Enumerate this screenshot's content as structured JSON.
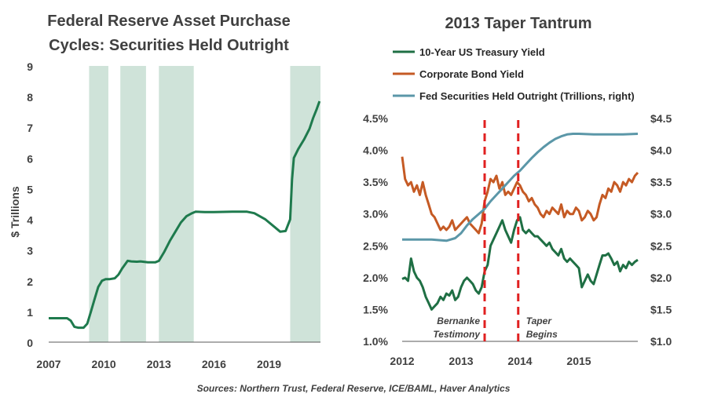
{
  "colors": {
    "shade": "#cfe3d9",
    "fed_left": "#1e7a4d",
    "treasury": "#1f6f44",
    "corporate": "#c55a24",
    "fed_right": "#5b97a8",
    "taper_line": "#e02020",
    "axis": "#595959"
  },
  "source": "Sources: Northern Trust, Federal Reserve, ICE/BAML, Haver Analytics",
  "chart_data": [
    {
      "type": "line",
      "title": "Federal Reserve Asset Purchase Cycles: Securities Held Outright",
      "title_lines": [
        "Federal Reserve Asset Purchase",
        "Cycles: Securities Held Outright"
      ],
      "xlabel": "",
      "ylabel": "$ Trillions",
      "xlim": [
        2007,
        2021.8
      ],
      "ylim": [
        0,
        9
      ],
      "x_ticks": [
        "2007",
        "2010",
        "2013",
        "2016",
        "2019"
      ],
      "x_tick_values": [
        2007,
        2010,
        2013,
        2016,
        2019
      ],
      "y_ticks": [
        "0",
        "1",
        "2",
        "3",
        "4",
        "5",
        "6",
        "7",
        "8",
        "9"
      ],
      "grid": false,
      "shaded_periods": [
        [
          2009.2,
          2010.25
        ],
        [
          2010.9,
          2012.3
        ],
        [
          2013.0,
          2014.9
        ],
        [
          2020.15,
          2021.8
        ]
      ],
      "series": [
        {
          "values_x": [
            2007.0,
            2007.5,
            2008.0,
            2008.2,
            2008.4,
            2008.6,
            2008.9,
            2009.1,
            2009.3,
            2009.5,
            2009.7,
            2009.9,
            2010.1,
            2010.3,
            2010.6,
            2010.8,
            2011.0,
            2011.3,
            2011.5,
            2011.8,
            2012.0,
            2012.4,
            2012.8,
            2013.0,
            2013.3,
            2013.6,
            2013.9,
            2014.2,
            2014.5,
            2014.8,
            2015.0,
            2015.5,
            2016.0,
            2017.0,
            2017.8,
            2018.2,
            2018.8,
            2019.3,
            2019.6,
            2019.9,
            2020.05,
            2020.15,
            2020.25,
            2020.35,
            2020.6,
            2020.9,
            2021.2,
            2021.4,
            2021.6,
            2021.75
          ],
          "values_y": [
            0.78,
            0.78,
            0.78,
            0.7,
            0.5,
            0.47,
            0.47,
            0.6,
            1.0,
            1.4,
            1.8,
            2.0,
            2.05,
            2.05,
            2.08,
            2.2,
            2.4,
            2.65,
            2.63,
            2.62,
            2.63,
            2.6,
            2.6,
            2.65,
            2.95,
            3.3,
            3.6,
            3.9,
            4.1,
            4.2,
            4.25,
            4.24,
            4.24,
            4.25,
            4.25,
            4.2,
            4.0,
            3.75,
            3.6,
            3.62,
            3.85,
            4.0,
            5.3,
            6.0,
            6.3,
            6.6,
            6.95,
            7.3,
            7.6,
            7.85
          ]
        }
      ]
    },
    {
      "type": "line",
      "title": "2013 Taper Tantrum",
      "xlabel": "",
      "ylabel": "",
      "xlim": [
        2012,
        2016
      ],
      "ylim": [
        1.0,
        4.5
      ],
      "ylim_right": [
        1.0,
        4.5
      ],
      "x_ticks": [
        "2012",
        "2013",
        "2014",
        "2015"
      ],
      "x_tick_values": [
        2012,
        2013,
        2014,
        2015
      ],
      "y_ticks_left": [
        "1.0%",
        "1.5%",
        "2.0%",
        "2.5%",
        "3.0%",
        "3.5%",
        "4.0%",
        "4.5%"
      ],
      "y_ticks_right": [
        "$1.0",
        "$1.5",
        "$2.0",
        "$2.5",
        "$3.0",
        "$3.5",
        "$4.0",
        "$4.5"
      ],
      "grid": false,
      "legend_position": "top",
      "vertical_markers": [
        {
          "x": 2013.4,
          "label_lines": [
            "Bernanke",
            "Testimony"
          ]
        },
        {
          "x": 2013.97,
          "label_lines": [
            "Taper",
            "Begins"
          ]
        }
      ],
      "series": [
        {
          "name": "10-Year US Treasury Yield",
          "axis": "left",
          "x": [
            2012.0,
            2012.05,
            2012.1,
            2012.15,
            2012.2,
            2012.25,
            2012.3,
            2012.35,
            2012.4,
            2012.45,
            2012.5,
            2012.55,
            2012.6,
            2012.65,
            2012.7,
            2012.75,
            2012.8,
            2012.85,
            2012.9,
            2012.95,
            2013.0,
            2013.05,
            2013.1,
            2013.15,
            2013.2,
            2013.25,
            2013.3,
            2013.35,
            2013.4,
            2013.45,
            2013.5,
            2013.55,
            2013.6,
            2013.65,
            2013.7,
            2013.75,
            2013.8,
            2013.85,
            2013.9,
            2013.95,
            2014.0,
            2014.05,
            2014.1,
            2014.15,
            2014.2,
            2014.25,
            2014.3,
            2014.35,
            2014.4,
            2014.45,
            2014.5,
            2014.55,
            2014.6,
            2014.65,
            2014.7,
            2014.75,
            2014.8,
            2014.85,
            2014.9,
            2014.95,
            2015.0,
            2015.05,
            2015.1,
            2015.15,
            2015.2,
            2015.25,
            2015.3,
            2015.35,
            2015.4,
            2015.45,
            2015.5,
            2015.55,
            2015.6,
            2015.65,
            2015.7,
            2015.75,
            2015.8,
            2015.85,
            2015.9,
            2015.95,
            2016.0
          ],
          "y": [
            1.98,
            2.0,
            1.95,
            2.3,
            2.1,
            2.0,
            1.95,
            1.85,
            1.7,
            1.6,
            1.5,
            1.55,
            1.6,
            1.7,
            1.65,
            1.75,
            1.72,
            1.8,
            1.65,
            1.7,
            1.85,
            1.95,
            2.0,
            1.95,
            1.9,
            1.8,
            1.75,
            1.85,
            2.1,
            2.2,
            2.5,
            2.6,
            2.7,
            2.8,
            2.9,
            2.75,
            2.65,
            2.55,
            2.75,
            2.9,
            2.95,
            2.75,
            2.7,
            2.75,
            2.7,
            2.65,
            2.65,
            2.6,
            2.55,
            2.5,
            2.55,
            2.45,
            2.4,
            2.35,
            2.45,
            2.3,
            2.25,
            2.3,
            2.25,
            2.2,
            2.15,
            1.85,
            1.95,
            2.05,
            1.95,
            1.9,
            2.05,
            2.2,
            2.35,
            2.35,
            2.38,
            2.3,
            2.2,
            2.25,
            2.1,
            2.2,
            2.15,
            2.25,
            2.2,
            2.25,
            2.28
          ]
        },
        {
          "name": "Corporate Bond Yield",
          "axis": "left",
          "x": [
            2012.0,
            2012.05,
            2012.1,
            2012.15,
            2012.2,
            2012.25,
            2012.3,
            2012.35,
            2012.4,
            2012.45,
            2012.5,
            2012.55,
            2012.6,
            2012.65,
            2012.7,
            2012.75,
            2012.8,
            2012.85,
            2012.9,
            2012.95,
            2013.0,
            2013.05,
            2013.1,
            2013.15,
            2013.2,
            2013.25,
            2013.3,
            2013.35,
            2013.4,
            2013.45,
            2013.5,
            2013.55,
            2013.6,
            2013.65,
            2013.7,
            2013.75,
            2013.8,
            2013.85,
            2013.9,
            2013.95,
            2014.0,
            2014.05,
            2014.1,
            2014.15,
            2014.2,
            2014.25,
            2014.3,
            2014.35,
            2014.4,
            2014.45,
            2014.5,
            2014.55,
            2014.6,
            2014.65,
            2014.7,
            2014.75,
            2014.8,
            2014.85,
            2014.9,
            2014.95,
            2015.0,
            2015.05,
            2015.1,
            2015.15,
            2015.2,
            2015.25,
            2015.3,
            2015.35,
            2015.4,
            2015.45,
            2015.5,
            2015.55,
            2015.6,
            2015.65,
            2015.7,
            2015.75,
            2015.8,
            2015.85,
            2015.9,
            2015.95,
            2016.0
          ],
          "y": [
            3.9,
            3.55,
            3.45,
            3.5,
            3.35,
            3.45,
            3.3,
            3.5,
            3.3,
            3.15,
            3.0,
            2.95,
            2.85,
            2.75,
            2.8,
            2.75,
            2.8,
            2.9,
            2.75,
            2.8,
            2.85,
            2.9,
            2.95,
            2.85,
            2.8,
            2.75,
            2.7,
            2.85,
            3.2,
            3.35,
            3.55,
            3.5,
            3.6,
            3.4,
            3.5,
            3.3,
            3.35,
            3.3,
            3.4,
            3.5,
            3.45,
            3.35,
            3.3,
            3.2,
            3.25,
            3.15,
            3.1,
            3.0,
            2.95,
            3.05,
            3.0,
            3.1,
            3.05,
            3.0,
            3.15,
            2.95,
            3.05,
            3.0,
            3.0,
            3.1,
            3.05,
            2.9,
            2.95,
            3.05,
            3.0,
            2.9,
            2.95,
            3.15,
            3.3,
            3.25,
            3.4,
            3.35,
            3.5,
            3.45,
            3.35,
            3.5,
            3.45,
            3.55,
            3.5,
            3.6,
            3.65
          ]
        },
        {
          "name": "Fed Securities Held Outright (Trillions, right)",
          "axis": "right",
          "x": [
            2012.0,
            2012.25,
            2012.5,
            2012.75,
            2012.9,
            2013.0,
            2013.1,
            2013.2,
            2013.3,
            2013.4,
            2013.5,
            2013.6,
            2013.7,
            2013.8,
            2013.9,
            2014.0,
            2014.1,
            2014.2,
            2014.3,
            2014.4,
            2014.5,
            2014.6,
            2014.7,
            2014.8,
            2014.9,
            2015.0,
            2015.25,
            2015.5,
            2015.75,
            2016.0
          ],
          "y": [
            2.6,
            2.6,
            2.6,
            2.58,
            2.62,
            2.7,
            2.82,
            2.92,
            3.0,
            3.08,
            3.2,
            3.3,
            3.4,
            3.5,
            3.6,
            3.68,
            3.78,
            3.88,
            3.97,
            4.05,
            4.12,
            4.18,
            4.22,
            4.25,
            4.26,
            4.26,
            4.25,
            4.25,
            4.25,
            4.26
          ]
        }
      ]
    }
  ]
}
